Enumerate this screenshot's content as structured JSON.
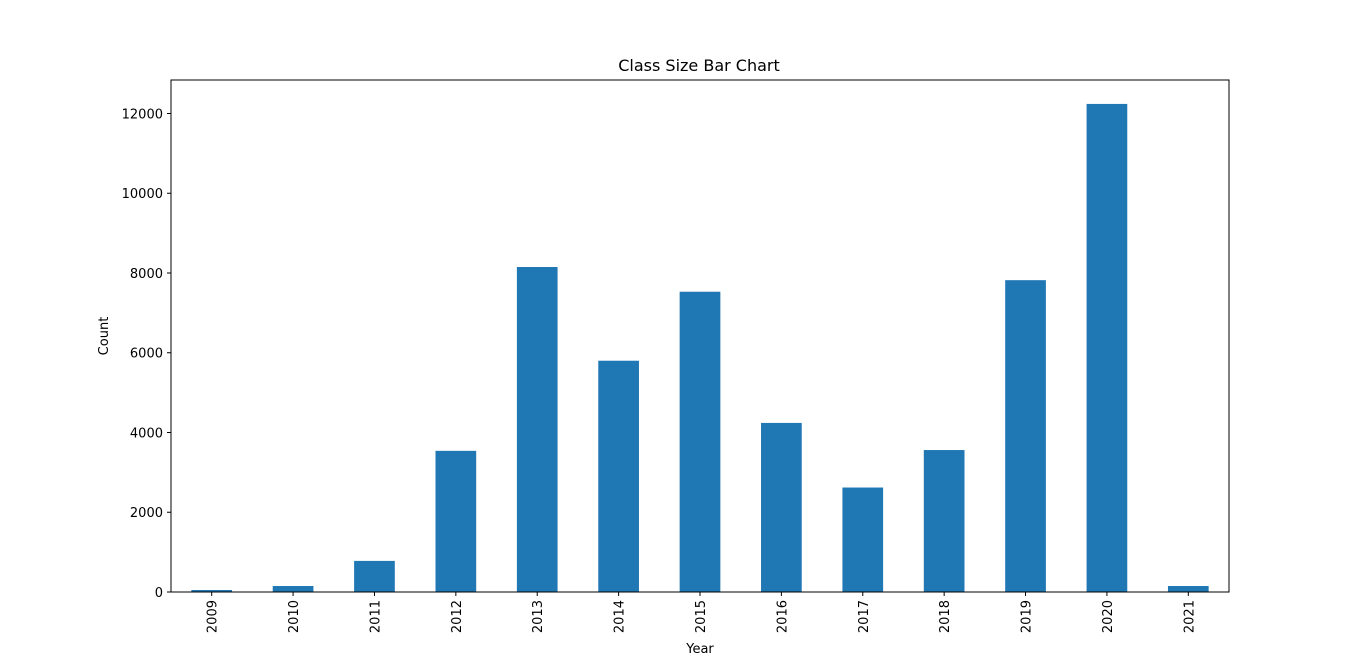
{
  "chart_data": {
    "type": "bar",
    "title": "Class Size Bar Chart",
    "xlabel": "Year",
    "ylabel": "Count",
    "categories": [
      "2009",
      "2010",
      "2011",
      "2012",
      "2013",
      "2014",
      "2015",
      "2016",
      "2017",
      "2018",
      "2019",
      "2020",
      "2021"
    ],
    "values": [
      50,
      150,
      780,
      3540,
      8150,
      5800,
      7530,
      4240,
      2620,
      3560,
      7820,
      12240,
      150
    ],
    "ylim": [
      0,
      12840
    ],
    "yticks": [
      0,
      2000,
      4000,
      6000,
      8000,
      10000,
      12000
    ],
    "ytick_labels": [
      "0",
      "2000",
      "4000",
      "6000",
      "8000",
      "10000",
      "12000"
    ],
    "bar_color": "#1f77b4",
    "grid": false,
    "legend": false
  }
}
